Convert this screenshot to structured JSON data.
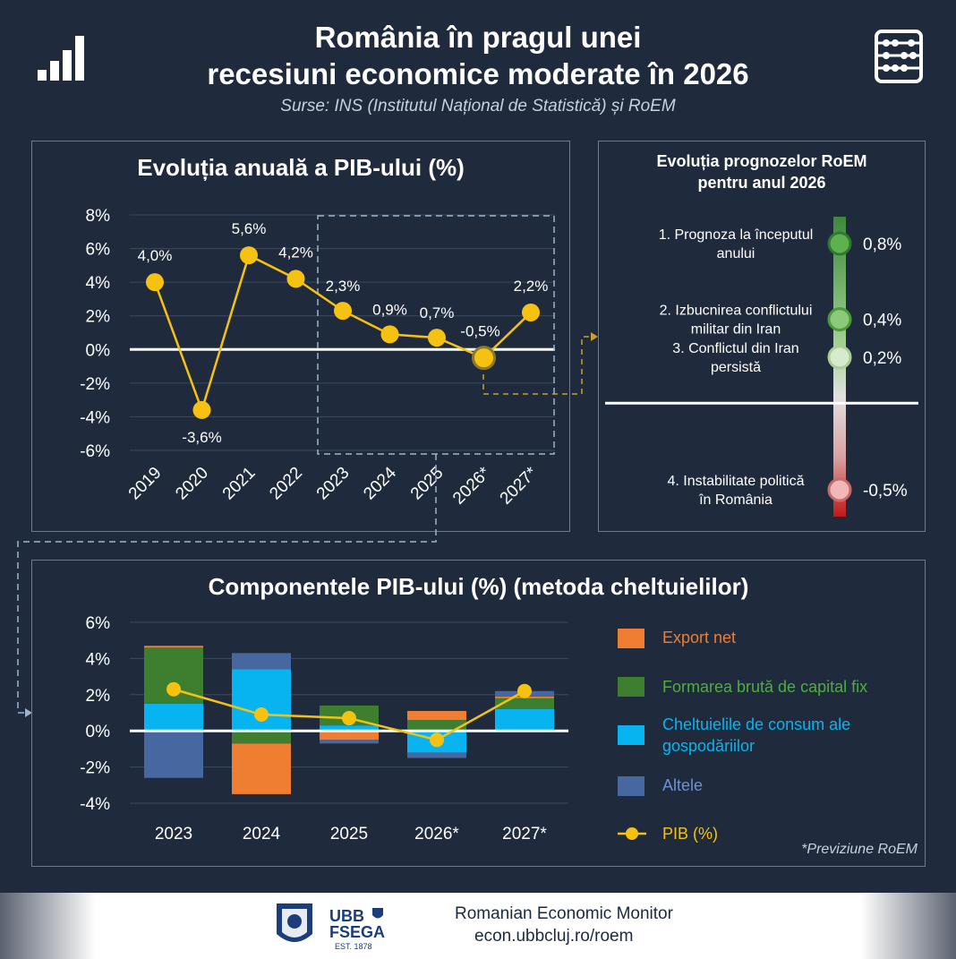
{
  "header": {
    "title_line1": "România în pragul unei",
    "title_line2": "recesiuni economice moderate în 2026",
    "subtitle": "Surse:  INS (Institutul Național de Statistică) și RoEM"
  },
  "colors": {
    "background": "#1f2b3d",
    "gdp_line": "#f5c211",
    "export_net": "#ef7d32",
    "fbcf": "#3e7f2f",
    "consum": "#08b4f0",
    "altele": "#4767a1"
  },
  "icons": [
    "bar-chart-icon",
    "abacus-icon"
  ],
  "chart_data": [
    {
      "type": "line",
      "title": "Evoluția anuală a PIB-ului (%)",
      "x": [
        "2019",
        "2020",
        "2021",
        "2022",
        "2023",
        "2024",
        "2025",
        "2026*",
        "2027*"
      ],
      "values": [
        4.0,
        -3.6,
        5.6,
        4.2,
        2.3,
        0.9,
        0.7,
        -0.5,
        2.2
      ],
      "labels": [
        "4,0%",
        "-3,6%",
        "5,6%",
        "4,2%",
        "2,3%",
        "0,9%",
        "0,7%",
        "-0,5%",
        "2,2%"
      ],
      "yticks": [
        "8%",
        "6%",
        "4%",
        "2%",
        "0%",
        "-2%",
        "-4%",
        "-6%"
      ],
      "ylim": [
        -6,
        8
      ],
      "grid": true
    },
    {
      "type": "scatter",
      "title_line1": "Evoluția prognozelor RoEM",
      "title_line2": "pentru anul 2026",
      "points": [
        {
          "label_line1": "1. Prognoza la începutul",
          "label_line2": "anului",
          "value": 0.8,
          "value_label": "0,8%"
        },
        {
          "label_line1": "2. Izbucnirea conflictului",
          "label_line2": "militar din Iran",
          "value": 0.4,
          "value_label": "0,4%"
        },
        {
          "label_line1": "3. Conflictul din Iran",
          "label_line2": "persistă",
          "value": 0.2,
          "value_label": "0,2%"
        },
        {
          "label_line1": "4. Instabilitate politică",
          "label_line2": "în România",
          "value": -0.5,
          "value_label": "-0,5%"
        }
      ]
    },
    {
      "type": "bar",
      "title": "Componentele PIB-ului (%) (metoda cheltuielilor)",
      "categories": [
        "2023",
        "2024",
        "2025",
        "2026*",
        "2027*"
      ],
      "yticks": [
        "6%",
        "4%",
        "2%",
        "0%",
        "-2%",
        "-4%"
      ],
      "ylim": [
        -4,
        6
      ],
      "series": [
        {
          "name": "Export net",
          "values": [
            0.1,
            -2.8,
            -0.5,
            0.5,
            0.1
          ]
        },
        {
          "name": "Formarea brută de capital fix",
          "values": [
            3.1,
            -0.7,
            1.1,
            0.6,
            0.6
          ]
        },
        {
          "name": "Cheltuielile de consum ale gospodăriilor",
          "values": [
            1.5,
            3.4,
            0.3,
            -1.2,
            1.2
          ]
        },
        {
          "name": "Altele",
          "values": [
            -2.6,
            0.9,
            -0.2,
            -0.3,
            0.3
          ]
        }
      ],
      "gdp": {
        "name": "PIB (%)",
        "values": [
          2.3,
          0.9,
          0.7,
          -0.5,
          2.2
        ]
      },
      "legend_lines": {
        "export": "Export net",
        "fbcf": "Formarea brută de capital fix",
        "consum_line1": "Cheltuielile de consum ale",
        "consum_line2": "gospodăriilor",
        "altele": "Altele",
        "pib": "PIB (%)"
      },
      "footnote": "*Previziune RoEM"
    }
  ],
  "footer": {
    "ubb_line1": "UBB",
    "ubb_line2": "FSEGA",
    "est": "EST. 1878",
    "name": "Romanian Economic Monitor",
    "url": "econ.ubbcluj.ro/roem"
  }
}
